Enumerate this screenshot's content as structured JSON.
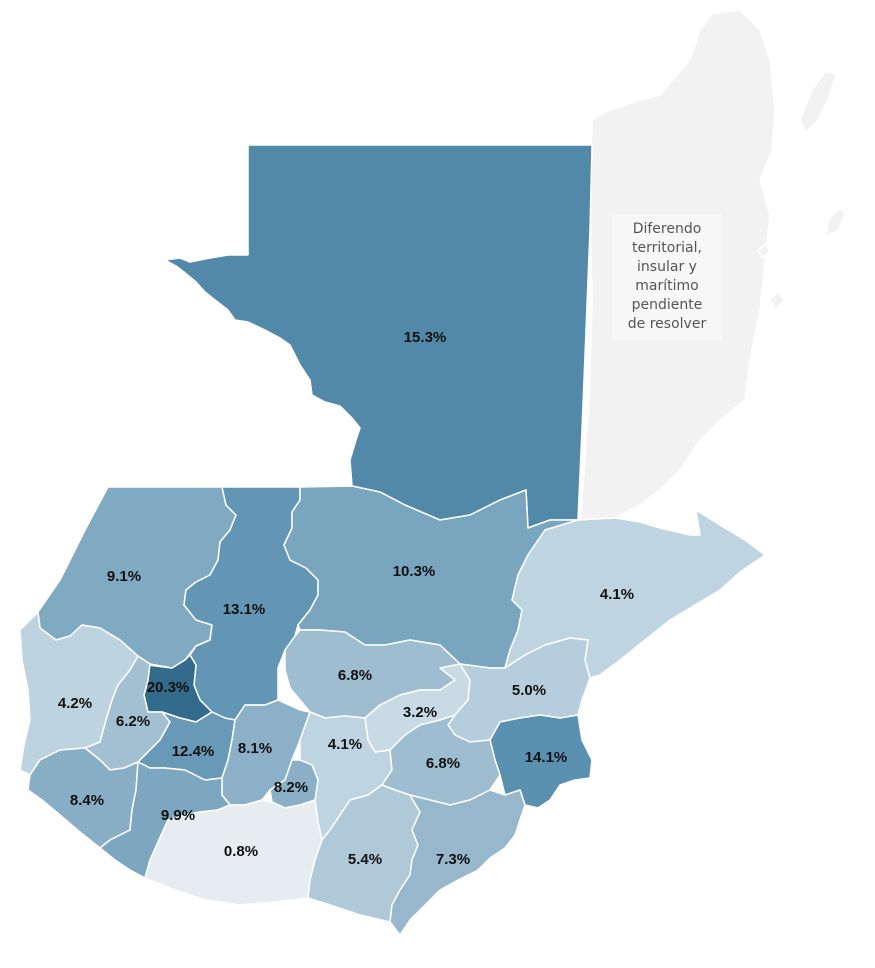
{
  "colors": {
    "belize_area": "#f2f2f2",
    "border": "#ffffff",
    "scale_min": "#e6ecf0",
    "scale_max": "#2e6585"
  },
  "note": {
    "lines": [
      "Diferendo",
      "territorial,",
      "insular y",
      "marítimo",
      "pendiente",
      "de resolver"
    ]
  },
  "regions": [
    {
      "id": "peten",
      "label": "15.3%",
      "value": 15.3,
      "color": "#5288a8"
    },
    {
      "id": "huehuetenango",
      "label": "9.1%",
      "value": 9.1,
      "color": "#80a9c2"
    },
    {
      "id": "quiche",
      "label": "13.1%",
      "value": 13.1,
      "color": "#6296b4"
    },
    {
      "id": "alta-verapaz",
      "label": "10.3%",
      "value": 10.3,
      "color": "#7aa5bf"
    },
    {
      "id": "izabal",
      "label": "4.1%",
      "value": 4.1,
      "color": "#bfd4e1"
    },
    {
      "id": "san-marcos",
      "label": "4.2%",
      "value": 4.2,
      "color": "#bed3e0"
    },
    {
      "id": "totonicapan",
      "label": "20.3%",
      "value": 20.3,
      "color": "#336b8c"
    },
    {
      "id": "quetzaltenango",
      "label": "6.2%",
      "value": 6.2,
      "color": "#a3c0d3"
    },
    {
      "id": "solola",
      "label": "12.4%",
      "value": 12.4,
      "color": "#6899b6"
    },
    {
      "id": "baja-verapaz",
      "label": "6.8%",
      "value": 6.8,
      "color": "#9fbdd1"
    },
    {
      "id": "chimaltenango",
      "label": "8.1%",
      "value": 8.1,
      "color": "#8bb0c8"
    },
    {
      "id": "el-progreso",
      "label": "3.2%",
      "value": 3.2,
      "color": "#c9dae5"
    },
    {
      "id": "zacapa",
      "label": "5.0%",
      "value": 5.0,
      "color": "#b5cddc"
    },
    {
      "id": "guatemala",
      "label": "4.1%",
      "value": 4.1,
      "color": "#bfd4e1"
    },
    {
      "id": "chiquimula",
      "label": "14.1%",
      "value": 14.1,
      "color": "#5a90b0"
    },
    {
      "id": "jalapa",
      "label": "6.8%",
      "value": 6.8,
      "color": "#9fbdd1"
    },
    {
      "id": "sacatepequez",
      "label": "8.2%",
      "value": 8.2,
      "color": "#8aafc7"
    },
    {
      "id": "retalhuleu",
      "label": "8.4%",
      "value": 8.4,
      "color": "#88aec6"
    },
    {
      "id": "suchitepequez",
      "label": "9.9%",
      "value": 9.9,
      "color": "#7da7c1"
    },
    {
      "id": "escuintla",
      "label": "0.8%",
      "value": 0.8,
      "color": "#e6ecf0"
    },
    {
      "id": "santa-rosa",
      "label": "5.4%",
      "value": 5.4,
      "color": "#b0c9d9"
    },
    {
      "id": "jutiapa",
      "label": "7.3%",
      "value": 7.3,
      "color": "#96b7cc"
    }
  ]
}
